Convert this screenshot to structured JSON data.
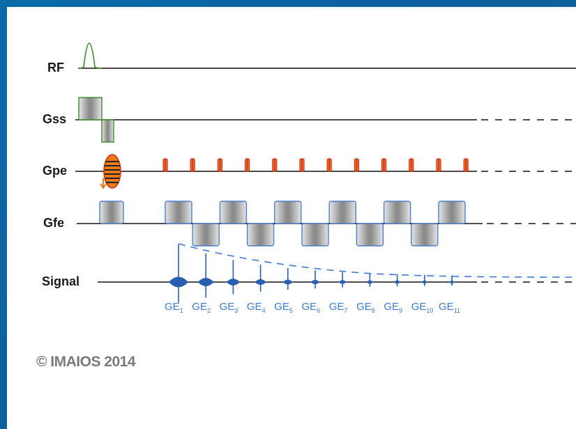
{
  "labels": {
    "rf": "RF",
    "gss": "Gss",
    "gpe": "Gpe",
    "gfe": "Gfe",
    "signal": "Signal"
  },
  "echoes": [
    {
      "base": "GE",
      "sub": "1"
    },
    {
      "base": "GE",
      "sub": "2"
    },
    {
      "base": "GE",
      "sub": "3"
    },
    {
      "base": "GE",
      "sub": "4"
    },
    {
      "base": "GE",
      "sub": "5"
    },
    {
      "base": "GE",
      "sub": "6"
    },
    {
      "base": "GE",
      "sub": "7"
    },
    {
      "base": "GE",
      "sub": "8"
    },
    {
      "base": "GE",
      "sub": "9"
    },
    {
      "base": "GE",
      "sub": "10"
    },
    {
      "base": "GE",
      "sub": "11"
    }
  ],
  "copyright": "© IMAIOS 2014",
  "colors": {
    "rf_pulse": "#3c8a2a",
    "gss_outline": "#3c8a2a",
    "gpe_blips": "#d42a10",
    "gfe_outline": "#4a7cc8",
    "signal": "#2a5fb0",
    "decay_curve": "#3a78d8",
    "axis": "#111111"
  }
}
